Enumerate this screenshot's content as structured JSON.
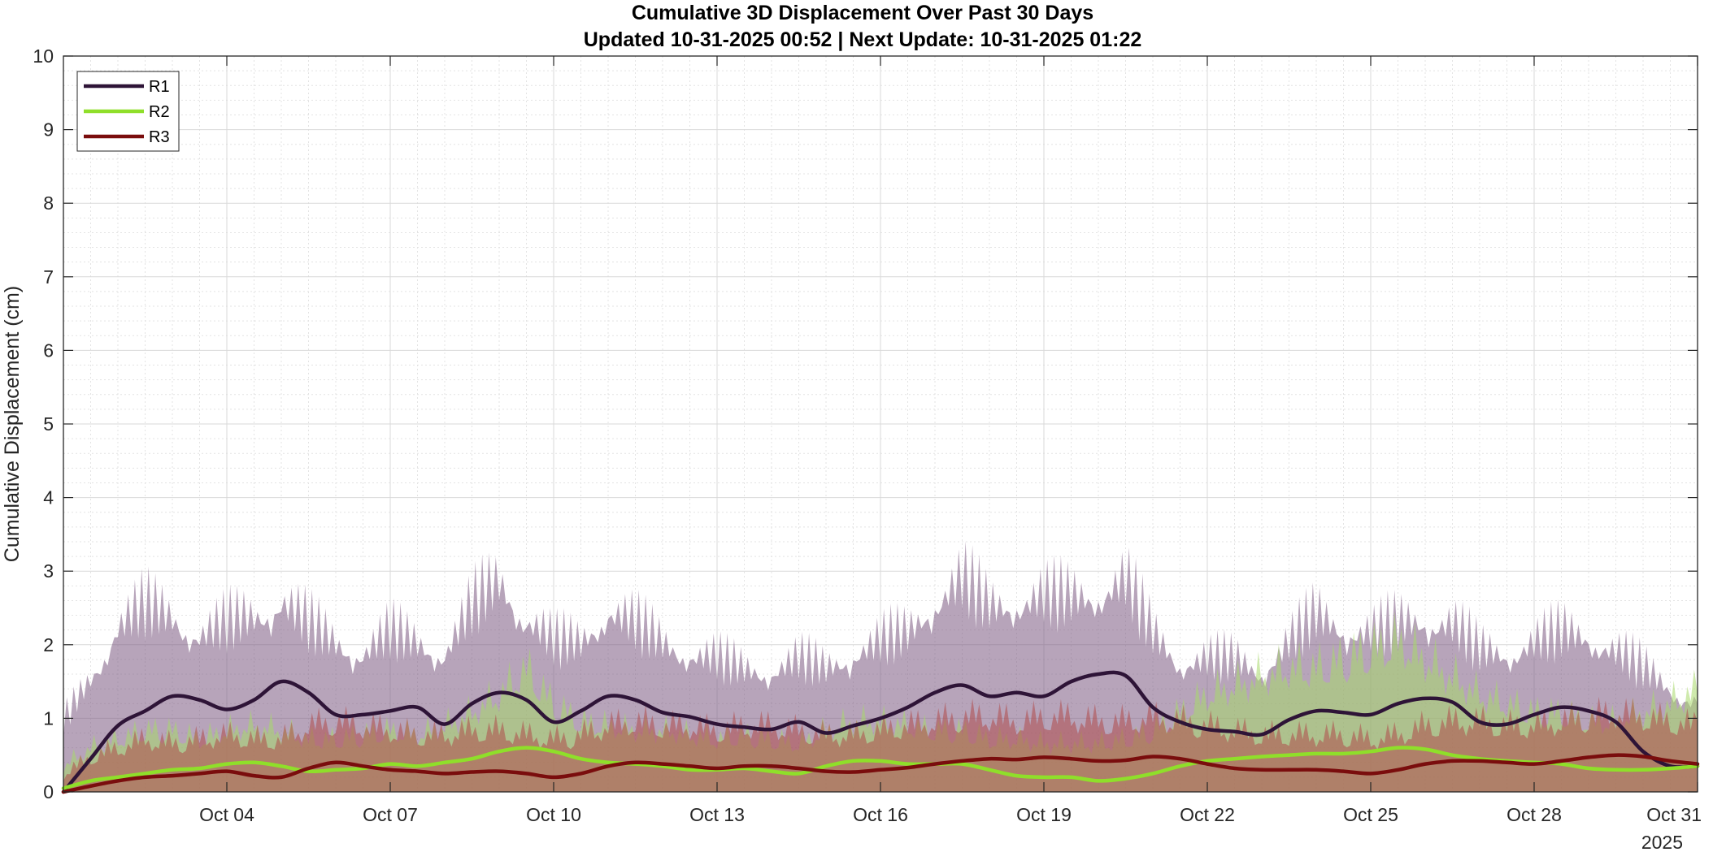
{
  "chart_data": {
    "type": "line",
    "title": "Cumulative 3D Displacement Over Past 30 Days",
    "subtitle": "Updated 10-31-2025 00:52  |  Next Update: 10-31-2025 01:22",
    "xlabel": "",
    "ylabel": "Cumulative Displacement (cm)",
    "ylim": [
      0,
      10
    ],
    "yticks": [
      "0",
      "1",
      "2",
      "3",
      "4",
      "5",
      "6",
      "7",
      "8",
      "9",
      "10"
    ],
    "xlim": [
      1,
      31
    ],
    "xticks": [
      {
        "day": 4,
        "label": "Oct 04"
      },
      {
        "day": 7,
        "label": "Oct 07"
      },
      {
        "day": 10,
        "label": "Oct 10"
      },
      {
        "day": 13,
        "label": "Oct 13"
      },
      {
        "day": 16,
        "label": "Oct 16"
      },
      {
        "day": 19,
        "label": "Oct 19"
      },
      {
        "day": 22,
        "label": "Oct 22"
      },
      {
        "day": 25,
        "label": "Oct 25"
      },
      {
        "day": 28,
        "label": "Oct 28"
      },
      {
        "day": 31,
        "label": "Oct 31"
      }
    ],
    "year_label": "2025",
    "grid": true,
    "legend_placement": "top-left",
    "series": [
      {
        "name": "R1",
        "color": "#2e1437",
        "band_color": "#7b5a82",
        "x": [
          1,
          1.5,
          2,
          2.5,
          3,
          3.5,
          4,
          4.5,
          5,
          5.5,
          6,
          6.5,
          7,
          7.5,
          8,
          8.5,
          9,
          9.5,
          10,
          10.5,
          11,
          11.5,
          12,
          12.5,
          13,
          13.5,
          14,
          14.5,
          15,
          15.5,
          16,
          16.5,
          17,
          17.5,
          18,
          18.5,
          19,
          19.5,
          20,
          20.5,
          21,
          21.5,
          22,
          22.5,
          23,
          23.5,
          24,
          24.5,
          25,
          25.5,
          26,
          26.5,
          27,
          27.5,
          28,
          28.5,
          29,
          29.5,
          30,
          30.5,
          31
        ],
        "values": [
          0,
          0.45,
          0.9,
          1.1,
          1.3,
          1.25,
          1.12,
          1.25,
          1.5,
          1.35,
          1.05,
          1.05,
          1.1,
          1.15,
          0.92,
          1.2,
          1.35,
          1.25,
          0.95,
          1.1,
          1.3,
          1.25,
          1.08,
          1.02,
          0.92,
          0.88,
          0.85,
          0.95,
          0.8,
          0.9,
          1.0,
          1.15,
          1.35,
          1.45,
          1.3,
          1.35,
          1.3,
          1.5,
          1.6,
          1.58,
          1.15,
          0.95,
          0.85,
          0.82,
          0.78,
          0.98,
          1.1,
          1.08,
          1.05,
          1.2,
          1.27,
          1.22,
          0.95,
          0.92,
          1.05,
          1.15,
          1.1,
          0.95,
          0.55,
          0.35,
          0.35
        ],
        "band_upper": [
          1.0,
          1.5,
          2.1,
          2.3,
          2.2,
          2.0,
          2.1,
          2.2,
          2.4,
          2.1,
          1.9,
          1.8,
          2.0,
          1.9,
          1.8,
          2.3,
          2.6,
          2.2,
          1.9,
          1.9,
          2.3,
          2.1,
          1.9,
          1.8,
          1.7,
          1.6,
          1.6,
          1.7,
          1.6,
          1.8,
          1.9,
          2.0,
          2.4,
          2.6,
          2.3,
          2.4,
          2.4,
          2.4,
          2.5,
          2.6,
          2.0,
          1.7,
          1.7,
          1.7,
          1.6,
          1.9,
          2.2,
          2.1,
          2.0,
          2.1,
          2.2,
          2.1,
          1.8,
          1.8,
          1.9,
          2.0,
          2.0,
          1.8,
          1.6,
          1.4,
          1.2
        ]
      },
      {
        "name": "R2",
        "color": "#8fdf2a",
        "band_color": "#a8d86a",
        "x": [
          1,
          1.5,
          2,
          2.5,
          3,
          3.5,
          4,
          4.5,
          5,
          5.5,
          6,
          6.5,
          7,
          7.5,
          8,
          8.5,
          9,
          9.5,
          10,
          10.5,
          11,
          11.5,
          12,
          12.5,
          13,
          13.5,
          14,
          14.5,
          15,
          15.5,
          16,
          16.5,
          17,
          17.5,
          18,
          18.5,
          19,
          19.5,
          20,
          20.5,
          21,
          21.5,
          22,
          22.5,
          23,
          23.5,
          24,
          24.5,
          25,
          25.5,
          26,
          26.5,
          27,
          27.5,
          28,
          28.5,
          29,
          29.5,
          30,
          30.5,
          31
        ],
        "values": [
          0.05,
          0.15,
          0.2,
          0.25,
          0.3,
          0.32,
          0.38,
          0.4,
          0.35,
          0.28,
          0.3,
          0.32,
          0.38,
          0.35,
          0.4,
          0.45,
          0.55,
          0.6,
          0.55,
          0.45,
          0.4,
          0.38,
          0.35,
          0.3,
          0.3,
          0.32,
          0.28,
          0.25,
          0.35,
          0.42,
          0.42,
          0.38,
          0.38,
          0.38,
          0.3,
          0.22,
          0.2,
          0.2,
          0.15,
          0.18,
          0.25,
          0.35,
          0.42,
          0.45,
          0.48,
          0.5,
          0.52,
          0.52,
          0.55,
          0.6,
          0.58,
          0.5,
          0.45,
          0.42,
          0.4,
          0.38,
          0.32,
          0.3,
          0.3,
          0.32,
          0.35
        ],
        "band_upper": [
          0.5,
          0.7,
          0.8,
          0.9,
          0.9,
          0.8,
          0.9,
          0.95,
          0.9,
          0.8,
          0.8,
          0.85,
          0.9,
          0.85,
          0.95,
          1.1,
          1.3,
          1.6,
          1.2,
          1.0,
          0.95,
          0.9,
          0.9,
          0.85,
          0.8,
          0.85,
          0.8,
          0.75,
          0.9,
          1.0,
          1.0,
          0.95,
          0.9,
          0.9,
          0.8,
          0.8,
          0.75,
          0.75,
          0.75,
          0.8,
          0.9,
          1.1,
          1.3,
          1.4,
          1.5,
          1.6,
          1.6,
          1.7,
          1.8,
          1.9,
          1.7,
          1.5,
          1.3,
          1.2,
          1.1,
          1.1,
          1.0,
          1.0,
          1.1,
          1.2,
          1.35
        ]
      },
      {
        "name": "R3",
        "color": "#7a0d0d",
        "band_color": "#b04a4a",
        "x": [
          1,
          1.5,
          2,
          2.5,
          3,
          3.5,
          4,
          4.5,
          5,
          5.5,
          6,
          6.5,
          7,
          7.5,
          8,
          8.5,
          9,
          9.5,
          10,
          10.5,
          11,
          11.5,
          12,
          12.5,
          13,
          13.5,
          14,
          14.5,
          15,
          15.5,
          16,
          16.5,
          17,
          17.5,
          18,
          18.5,
          19,
          19.5,
          20,
          20.5,
          21,
          21.5,
          22,
          22.5,
          23,
          23.5,
          24,
          24.5,
          25,
          25.5,
          26,
          26.5,
          27,
          27.5,
          28,
          28.5,
          29,
          29.5,
          30,
          30.5,
          31
        ],
        "values": [
          0,
          0.08,
          0.15,
          0.2,
          0.22,
          0.25,
          0.28,
          0.22,
          0.2,
          0.32,
          0.4,
          0.35,
          0.3,
          0.28,
          0.25,
          0.27,
          0.28,
          0.25,
          0.2,
          0.25,
          0.35,
          0.4,
          0.38,
          0.35,
          0.32,
          0.35,
          0.35,
          0.32,
          0.28,
          0.27,
          0.3,
          0.33,
          0.38,
          0.42,
          0.45,
          0.44,
          0.47,
          0.45,
          0.42,
          0.43,
          0.48,
          0.45,
          0.38,
          0.32,
          0.3,
          0.3,
          0.3,
          0.28,
          0.25,
          0.3,
          0.38,
          0.42,
          0.42,
          0.4,
          0.38,
          0.42,
          0.47,
          0.5,
          0.48,
          0.42,
          0.38
        ],
        "band_upper": [
          0.4,
          0.6,
          0.7,
          0.8,
          0.75,
          0.8,
          0.85,
          0.8,
          0.8,
          0.95,
          1.0,
          0.95,
          0.9,
          0.85,
          0.85,
          0.9,
          0.9,
          0.85,
          0.8,
          0.85,
          0.95,
          1.0,
          0.95,
          0.95,
          0.9,
          0.95,
          0.95,
          0.9,
          0.85,
          0.85,
          0.9,
          0.95,
          1.0,
          1.05,
          1.05,
          1.0,
          1.05,
          1.05,
          1.0,
          1.0,
          1.05,
          1.0,
          0.95,
          0.9,
          0.85,
          0.85,
          0.85,
          0.85,
          0.8,
          0.85,
          0.95,
          1.0,
          1.0,
          0.95,
          0.95,
          1.0,
          1.05,
          1.1,
          1.05,
          1.0,
          0.95
        ]
      }
    ]
  }
}
